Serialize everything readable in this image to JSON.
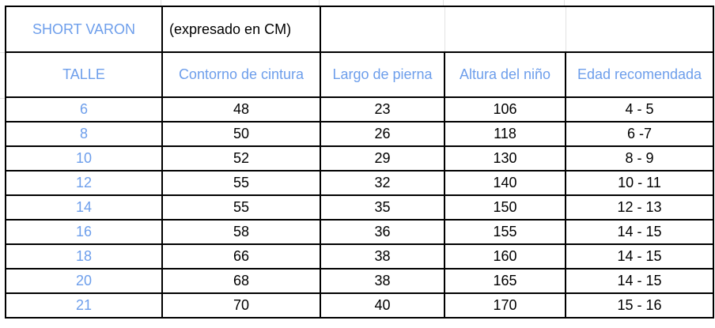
{
  "title": "SHORT VARON",
  "subtitle": "(expresado en CM)",
  "headers": [
    "TALLE",
    "Contorno de cintura",
    "Largo de pierna",
    "Altura del niño",
    "Edad recomendada"
  ],
  "rows": [
    [
      "6",
      "48",
      "23",
      "106",
      "4 - 5"
    ],
    [
      "8",
      "50",
      "26",
      "118",
      "6 -7"
    ],
    [
      "10",
      "52",
      "29",
      "130",
      "8 - 9"
    ],
    [
      "12",
      "55",
      "32",
      "140",
      "10 - 11"
    ],
    [
      "14",
      "55",
      "35",
      "150",
      "12 - 13"
    ],
    [
      "16",
      "58",
      "36",
      "155",
      "14 - 15"
    ],
    [
      "18",
      "66",
      "38",
      "160",
      "14 - 15"
    ],
    [
      "20",
      "68",
      "38",
      "165",
      "14 - 15"
    ],
    [
      "21",
      "70",
      "40",
      "170",
      "15 - 16"
    ]
  ],
  "colors": {
    "accent_text": "#6d9eeb",
    "border": "#000000",
    "gridline": "#e2e2e2"
  }
}
